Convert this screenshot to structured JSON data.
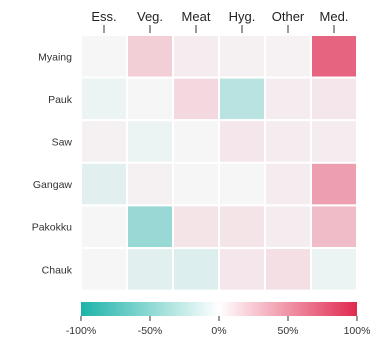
{
  "chart_data": {
    "type": "heatmap",
    "columns": [
      "Ess.",
      "Veg.",
      "Meat",
      "Hyg.",
      "Other",
      "Med."
    ],
    "rows": [
      "Myaing",
      "Pauk",
      "Saw",
      "Gangaw",
      "Pakokku",
      "Chauk"
    ],
    "values": [
      [
        0,
        20,
        5,
        3,
        2,
        75
      ],
      [
        -5,
        0,
        15,
        -30,
        5,
        8
      ],
      [
        3,
        -5,
        0,
        8,
        5,
        5
      ],
      [
        -10,
        3,
        0,
        0,
        5,
        45
      ],
      [
        0,
        -45,
        10,
        10,
        5,
        30
      ],
      [
        0,
        -10,
        -12,
        8,
        12,
        -5
      ]
    ],
    "colorbar": {
      "range": [
        -100,
        100
      ],
      "ticks": [
        "-100%",
        "-50%",
        "0%",
        "50%",
        "100%"
      ],
      "low_color": "#1db3a8",
      "mid_color": "#ffffff",
      "high_color": "#e0294f"
    },
    "grid": true
  }
}
